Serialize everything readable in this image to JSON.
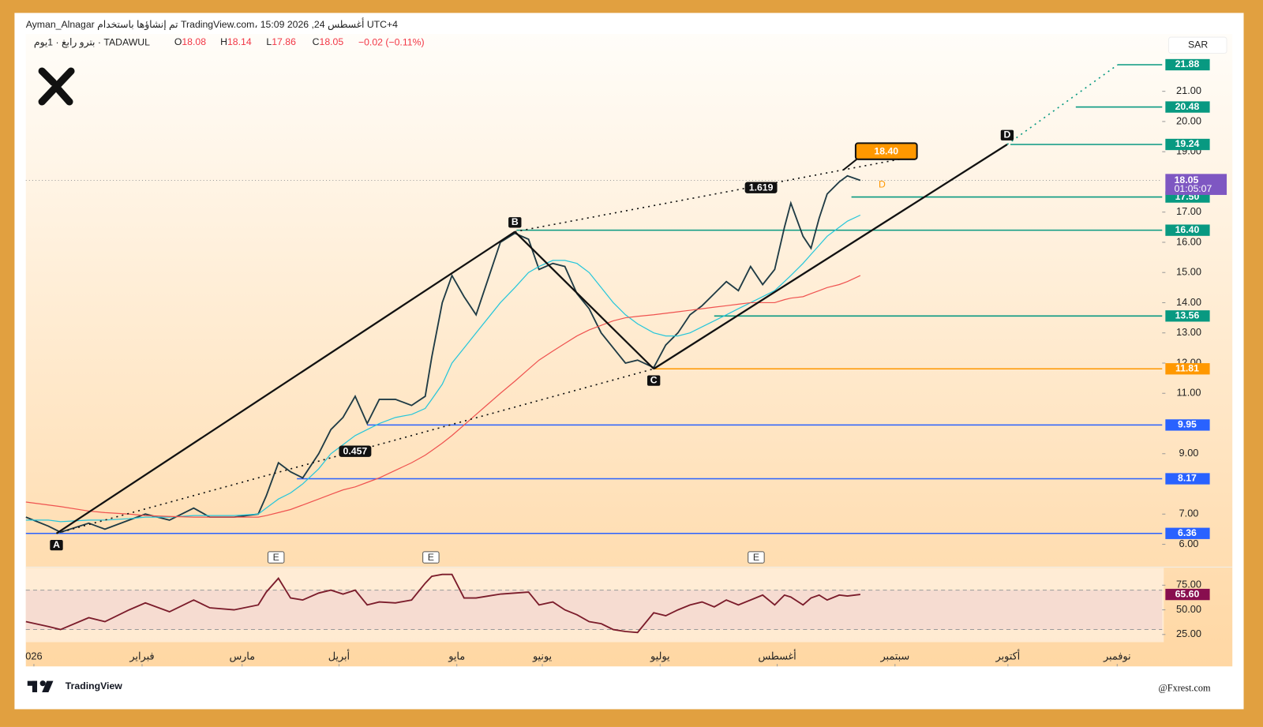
{
  "header": {
    "credit": "Ayman_Alnagar تم إنشاؤها باستخدام TradingView.com، 15:09 2026 ,24 أغسطس UTC+4",
    "symbol": "بترو رابغ · 1يوم · TADAWUL",
    "ohlc": [
      {
        "key": "O",
        "value": 18.08
      },
      {
        "key": "H",
        "value": 18.14
      },
      {
        "key": "L",
        "value": 17.86
      },
      {
        "key": "C",
        "value": 18.05
      }
    ],
    "change": "−0.02 (−0.11%)",
    "currency": "SAR"
  },
  "chart_data": {
    "type": "line",
    "x": [
      -0.074,
      0.134,
      0.246,
      0.506,
      0.655,
      0.879,
      1.028,
      1.251,
      1.474,
      1.623,
      1.847,
      2.07,
      2.144,
      2.256,
      2.368,
      2.48,
      2.628,
      2.74,
      2.852,
      2.964,
      3.075,
      3.187,
      3.336,
      3.485,
      3.611,
      3.671,
      3.768,
      3.857,
      3.969,
      4.08,
      4.192,
      4.304,
      4.438,
      4.564,
      4.661,
      4.788,
      4.899,
      5.011,
      5.123,
      5.234,
      5.346,
      5.458,
      5.57,
      5.719,
      5.83,
      5.942,
      6.054,
      6.165,
      6.277,
      6.389,
      6.5,
      6.612,
      6.724,
      6.835,
      6.925,
      6.984,
      7.096,
      7.17,
      7.245,
      7.319,
      7.431,
      7.506,
      7.625
    ],
    "series": [
      {
        "color": "#1f3b45",
        "values": [
          6.9,
          6.6,
          6.4,
          6.7,
          6.5,
          6.8,
          7.0,
          6.8,
          7.2,
          6.9,
          6.9,
          7.0,
          7.6,
          8.7,
          8.4,
          8.2,
          9.0,
          9.8,
          10.2,
          10.9,
          10.0,
          10.8,
          10.8,
          10.6,
          10.9,
          12.2,
          14.0,
          14.9,
          14.2,
          13.6,
          14.8,
          16.0,
          16.3,
          16.1,
          15.1,
          15.3,
          15.2,
          14.3,
          13.8,
          13.0,
          12.5,
          12.0,
          12.1,
          11.85,
          12.6,
          13.0,
          13.6,
          13.9,
          14.3,
          14.7,
          14.4,
          15.2,
          14.6,
          15.1,
          16.5,
          17.3,
          16.2,
          15.8,
          16.8,
          17.6,
          18.0,
          18.2,
          18.05
        ]
      },
      {
        "color": "#26c6da",
        "values": [
          6.8,
          6.8,
          6.75,
          6.8,
          6.8,
          6.85,
          6.9,
          6.9,
          6.95,
          6.95,
          6.95,
          7.0,
          7.2,
          7.5,
          7.7,
          8.0,
          8.5,
          9.0,
          9.3,
          9.6,
          9.8,
          10.0,
          10.2,
          10.3,
          10.5,
          10.8,
          11.3,
          12.0,
          12.5,
          13.0,
          13.5,
          14.0,
          14.5,
          15.0,
          15.2,
          15.4,
          15.4,
          15.3,
          15.0,
          14.5,
          14.0,
          13.6,
          13.3,
          13.0,
          12.9,
          12.9,
          13.0,
          13.2,
          13.4,
          13.6,
          13.8,
          14.0,
          14.2,
          14.4,
          14.7,
          14.9,
          15.3,
          15.6,
          15.9,
          16.2,
          16.5,
          16.7,
          16.9
        ]
      },
      {
        "color": "#ef5350",
        "values": [
          7.4,
          7.3,
          7.25,
          7.1,
          7.05,
          7.0,
          6.95,
          6.92,
          6.9,
          6.9,
          6.9,
          6.9,
          6.95,
          7.05,
          7.15,
          7.3,
          7.5,
          7.65,
          7.8,
          7.9,
          8.05,
          8.2,
          8.45,
          8.7,
          8.95,
          9.1,
          9.35,
          9.6,
          9.95,
          10.3,
          10.65,
          11.0,
          11.4,
          11.8,
          12.1,
          12.4,
          12.65,
          12.9,
          13.1,
          13.25,
          13.4,
          13.5,
          13.55,
          13.6,
          13.65,
          13.7,
          13.75,
          13.8,
          13.85,
          13.9,
          13.95,
          14.0,
          14.0,
          14.0,
          14.1,
          14.15,
          14.2,
          14.3,
          14.4,
          14.5,
          14.6,
          14.7,
          14.9
        ]
      }
    ],
    "xlim": [
      -0.0745,
      10.41
    ],
    "xticks": [
      {
        "value": 0,
        "label": "026"
      },
      {
        "value": 0.998,
        "label": "فبراير"
      },
      {
        "value": 1.921,
        "label": "مارس"
      },
      {
        "value": 2.815,
        "label": "أبريل"
      },
      {
        "value": 3.902,
        "label": "مايو"
      },
      {
        "value": 4.691,
        "label": "يونيو"
      },
      {
        "value": 5.778,
        "label": "يوليو"
      },
      {
        "value": 6.858,
        "label": "أغسطس"
      },
      {
        "value": 7.945,
        "label": "سبتمبر"
      },
      {
        "value": 8.987,
        "label": "أكتوبر"
      },
      {
        "value": 9.995,
        "label": "نوفمبر"
      }
    ],
    "ylim": [
      5.3,
      22.9
    ],
    "yticks": [
      {
        "value": 6,
        "label": "6.00"
      },
      {
        "value": 7,
        "label": "7.00"
      },
      {
        "value": 9,
        "label": "9.00"
      },
      {
        "value": 11,
        "label": "11.00"
      },
      {
        "value": 12,
        "label": "12.00"
      },
      {
        "value": 13,
        "label": "13.00"
      },
      {
        "value": 14,
        "label": "14.00"
      },
      {
        "value": 15,
        "label": "15.00"
      },
      {
        "value": 16,
        "label": "16.00"
      },
      {
        "value": 17,
        "label": "17.00"
      },
      {
        "value": 19,
        "label": "19.00"
      },
      {
        "value": 20,
        "label": "20.00"
      },
      {
        "value": 21,
        "label": "21.00"
      }
    ],
    "levels": [
      {
        "value": 21.88,
        "label": "21.88",
        "color": "#089981",
        "from": 10.0
      },
      {
        "value": 20.48,
        "label": "20.48",
        "color": "#089981",
        "from": 9.613
      },
      {
        "value": 19.24,
        "label": "19.24",
        "color": "#089981",
        "from": 9.01
      },
      {
        "value": 17.5,
        "label": "17.50",
        "color": "#089981",
        "from": 7.543
      },
      {
        "value": 16.4,
        "label": "16.40",
        "color": "#089981",
        "from": 4.453
      },
      {
        "value": 13.56,
        "label": "13.56",
        "color": "#089981",
        "from": 6.277
      },
      {
        "value": 11.81,
        "label": "11.81",
        "color": "#ff9800",
        "from": 5.719
      },
      {
        "value": 9.95,
        "label": "9.95",
        "color": "#2962ff",
        "from": 3.075
      },
      {
        "value": 8.17,
        "label": "8.17",
        "color": "#2962ff",
        "from": 2.427
      },
      {
        "value": 6.36,
        "label": "6.36",
        "color": "#2962ff",
        "from": -0.074
      }
    ],
    "last": {
      "value": 18.05,
      "label": "18.05",
      "timer": "01:05:07"
    },
    "pattern": [
      {
        "label": "A",
        "x": 0.208,
        "value": 6.36
      },
      {
        "label": "B",
        "x": 4.438,
        "value": 16.35
      },
      {
        "label": "C",
        "x": 5.719,
        "value": 11.81
      },
      {
        "label": "D",
        "x": 8.98,
        "value": 19.24
      }
    ],
    "fib": [
      {
        "label": "0.457",
        "x": 2.964,
        "value": 9.08
      },
      {
        "label": "1.619",
        "x": 6.709,
        "value": 17.81
      }
    ],
    "target": {
      "label": "18.40",
      "value": 18.4,
      "x": 7.47
    },
    "marker": {
      "label": "D",
      "x": 7.826,
      "value": 17.9
    },
    "events": [
      {
        "label": "E",
        "x": 2.234
      },
      {
        "label": "E",
        "x": 3.663
      },
      {
        "label": "E",
        "x": 6.664
      }
    ]
  },
  "rsi": {
    "color": "#7b1c2b",
    "values": [
      38,
      33,
      30,
      42,
      38,
      50,
      57,
      48,
      60,
      52,
      50,
      55,
      68,
      82,
      62,
      60,
      67,
      70,
      66,
      70,
      55,
      58,
      57,
      60,
      77,
      84,
      86,
      86,
      62,
      62,
      64,
      66,
      67,
      68,
      55,
      58,
      50,
      45,
      38,
      36,
      30,
      28,
      27,
      47,
      44,
      50,
      55,
      58,
      53,
      60,
      55,
      60,
      65,
      55,
      65,
      63,
      55,
      62,
      65,
      60,
      65,
      64,
      65.6
    ],
    "ylim": [
      17.2,
      92.6
    ],
    "yticks": [
      {
        "value": 75,
        "label": "75.00"
      },
      {
        "value": 50,
        "label": "50.00"
      },
      {
        "value": 25,
        "label": "25.00"
      }
    ],
    "bands": [
      30,
      70
    ],
    "last": {
      "value": 65.6,
      "label": "65.60"
    }
  },
  "footer": {
    "brand": "TradingView",
    "watermark": "@Fxrest.com"
  }
}
